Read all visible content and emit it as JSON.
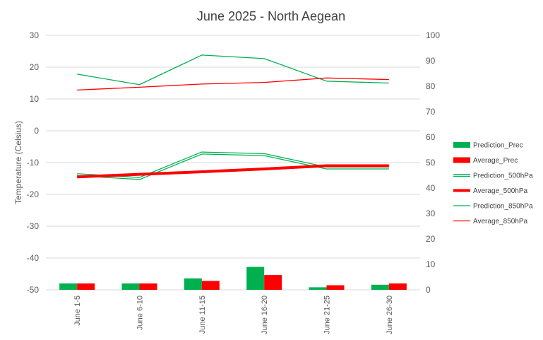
{
  "chart_data": {
    "type": "bar",
    "title": "June 2025 - North Aegean",
    "ylabel": "Temperature (Celsius)",
    "ylabel_right": "",
    "categories": [
      "June 1-5",
      "June 6-10",
      "June 11-15",
      "June 16-20",
      "June 21-25",
      "June 26-30"
    ],
    "ylim": [
      -50,
      30
    ],
    "y_ticks": [
      30,
      20,
      10,
      0,
      -10,
      -20,
      -30,
      -40,
      -50
    ],
    "y2lim": [
      0,
      100
    ],
    "y2_ticks": [
      100,
      90,
      80,
      70,
      60,
      50,
      40,
      30,
      20,
      10,
      0
    ],
    "grid": true,
    "legend_position": "right",
    "series": [
      {
        "name": "Prediction_Prec",
        "kind": "bar",
        "axis": "right",
        "color": "#00b050",
        "values": [
          2.5,
          2.5,
          4.5,
          9.0,
          1.0,
          2.0
        ]
      },
      {
        "name": "Average_Prec",
        "kind": "bar",
        "axis": "right",
        "color": "#ff0000",
        "values": [
          2.5,
          2.5,
          3.5,
          5.8,
          1.8,
          2.5
        ]
      },
      {
        "name": "Prediction_500hPa",
        "kind": "line",
        "style": "double",
        "axis": "left",
        "color": "#00b050",
        "values": [
          -13.8,
          -15.0,
          -7.0,
          -7.5,
          -11.7,
          -11.7
        ]
      },
      {
        "name": "Average_500hPa",
        "kind": "line",
        "style": "thick",
        "axis": "left",
        "color": "#ff0000",
        "values": [
          -14.5,
          -13.7,
          -12.9,
          -12.0,
          -11.0,
          -11.0
        ]
      },
      {
        "name": "Prediction_850hPa",
        "kind": "line",
        "style": "thin",
        "axis": "left",
        "color": "#00b050",
        "values": [
          17.8,
          14.5,
          23.8,
          22.7,
          15.6,
          15.0
        ]
      },
      {
        "name": "Average_850hPa",
        "kind": "line",
        "style": "thin",
        "axis": "left",
        "color": "#ff0000",
        "values": [
          12.8,
          13.7,
          14.7,
          15.2,
          16.6,
          16.1
        ]
      }
    ]
  }
}
